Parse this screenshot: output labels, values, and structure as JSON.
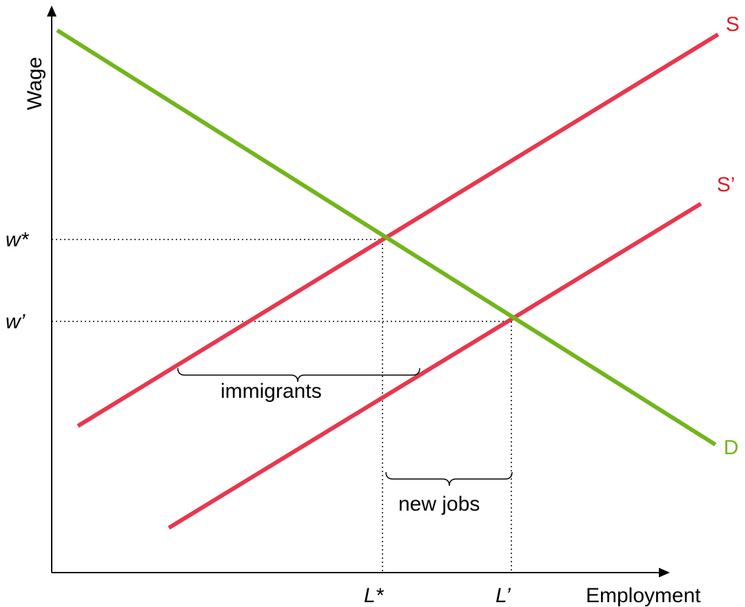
{
  "colors": {
    "supply": "#e8374e",
    "demand": "#72b51c",
    "axis": "#000000",
    "label_curve_supply": "#e11b22",
    "label_curve_demand": "#72b51c"
  },
  "axes": {
    "y_label": "Wage",
    "x_label": "Employment"
  },
  "curves": {
    "S": "S",
    "S_prime": "S’",
    "D": "D"
  },
  "ticks": {
    "w_star": "w*",
    "w_prime": "w’",
    "L_star": "L*",
    "L_prime": "L’"
  },
  "annotations": {
    "immigrants": "immigrants",
    "new_jobs": "new jobs"
  }
}
